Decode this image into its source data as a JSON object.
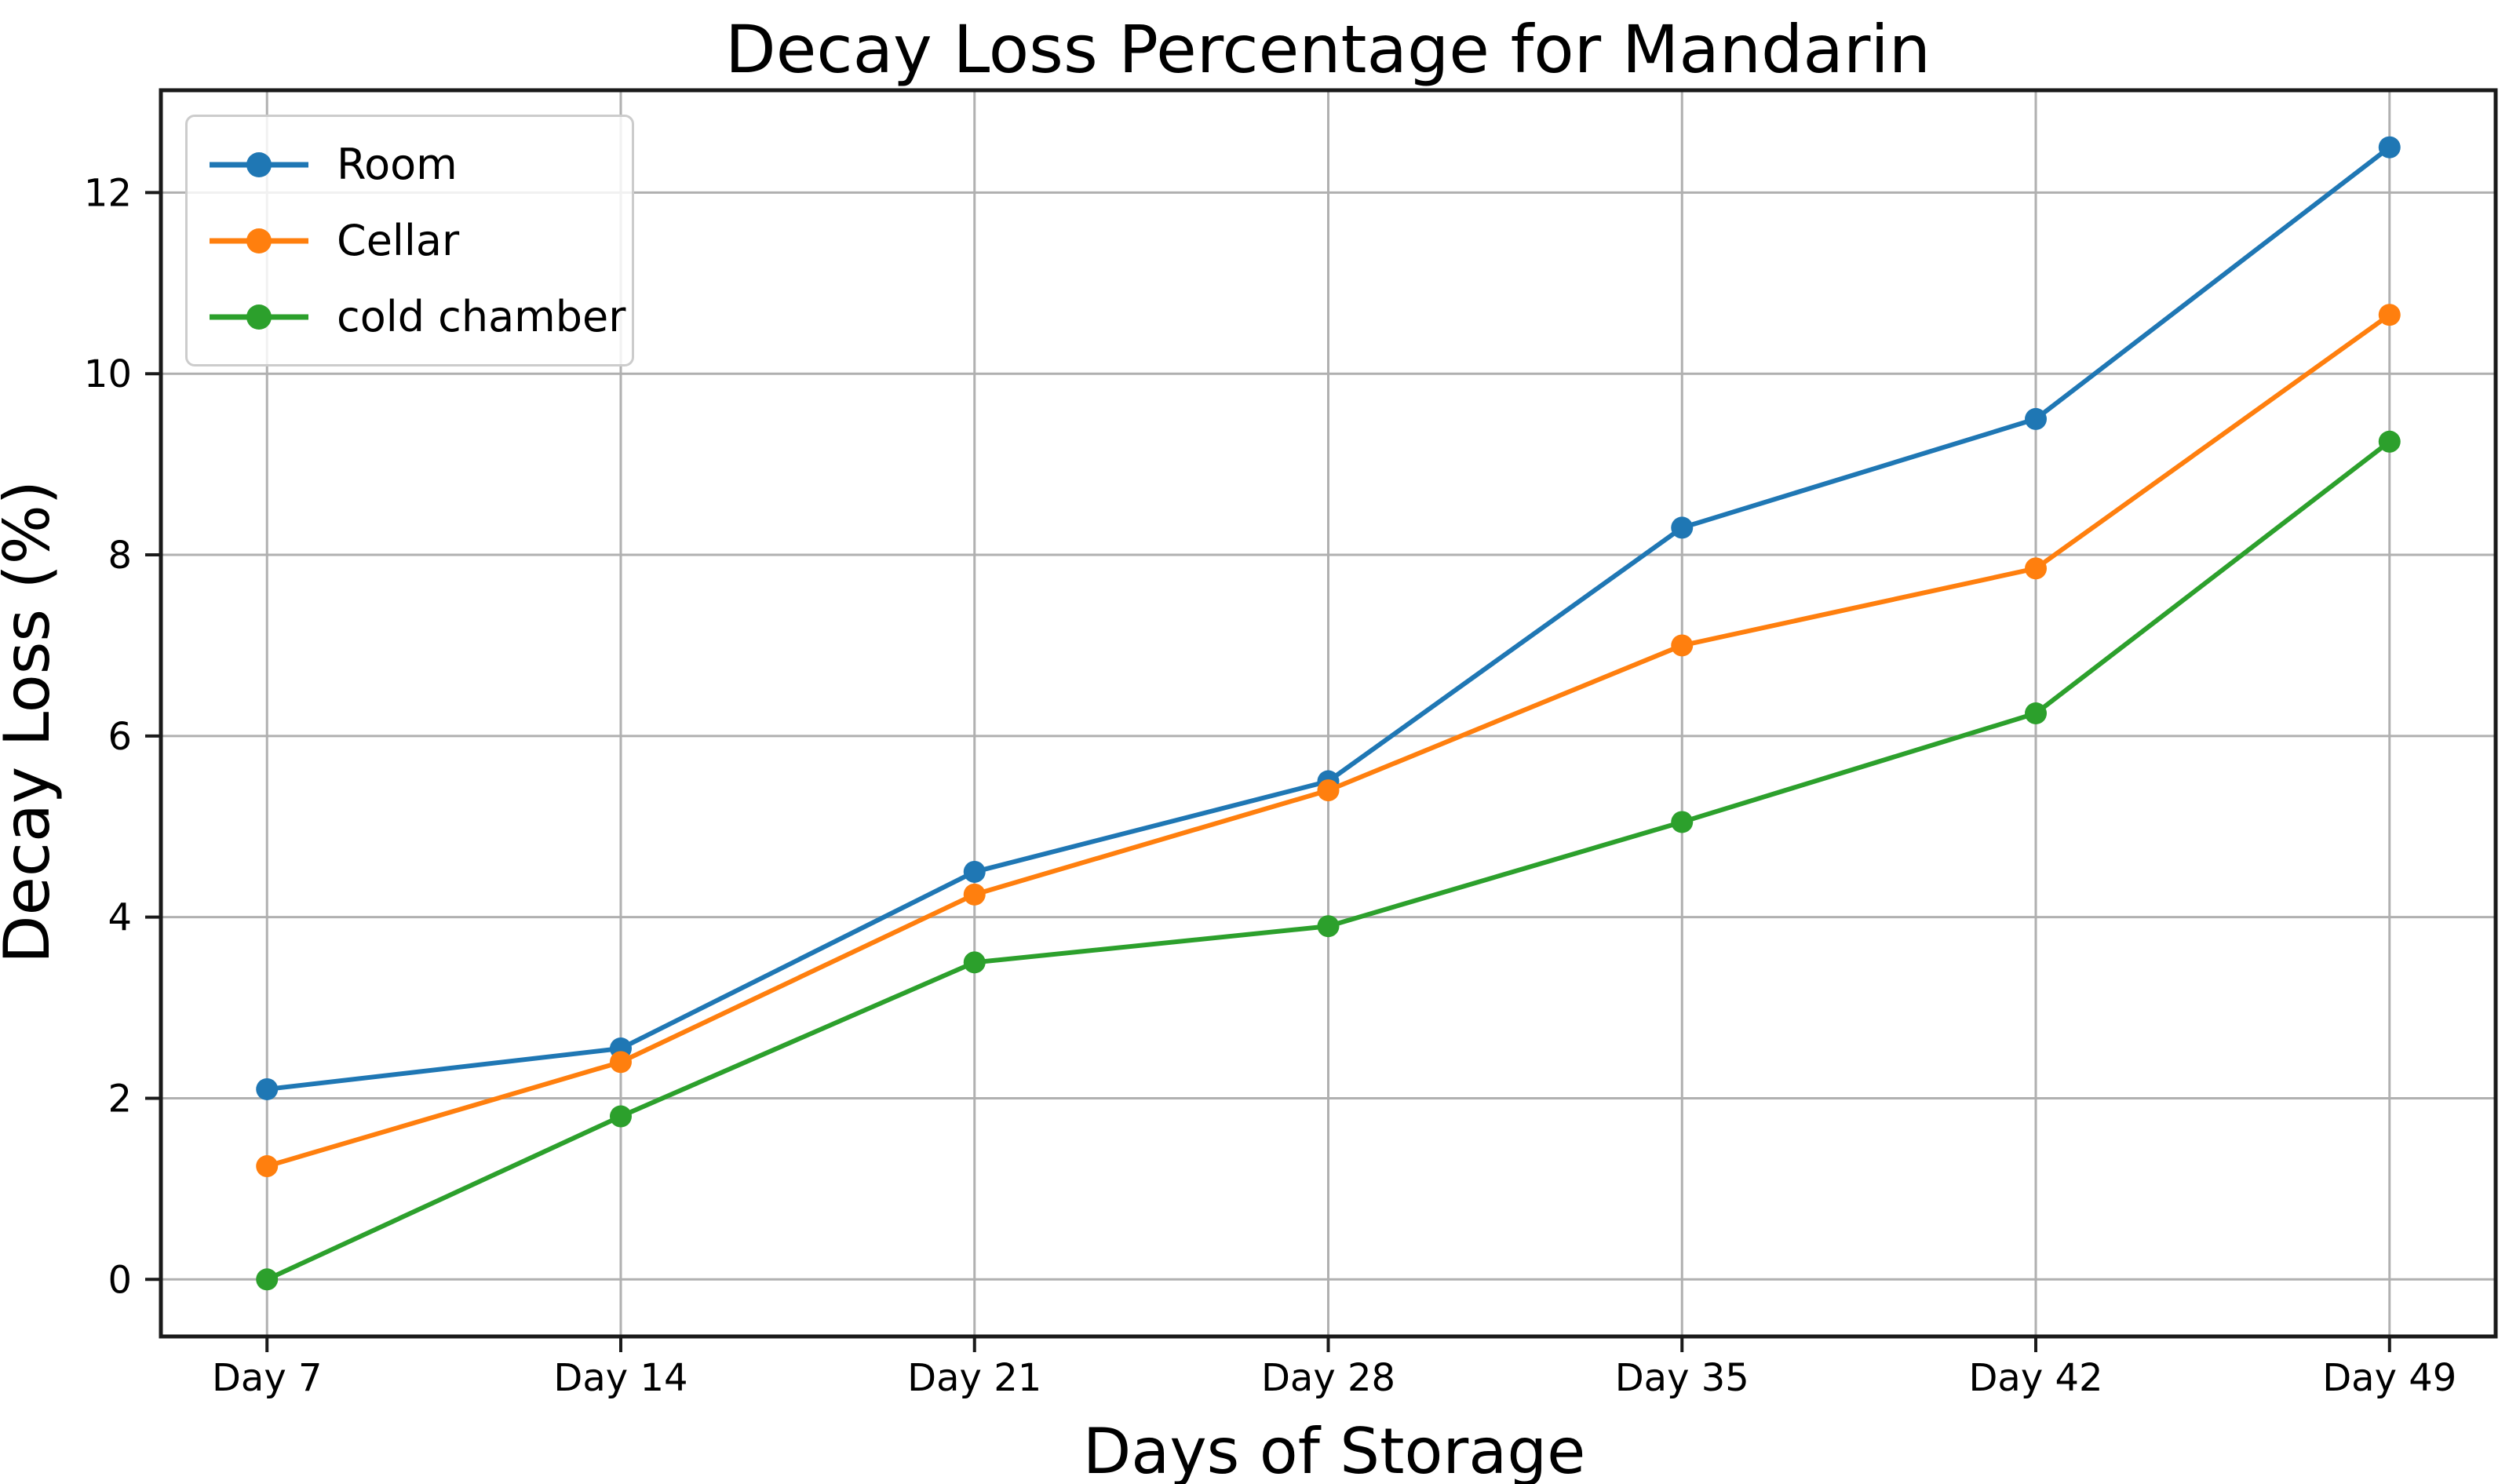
{
  "chart_data": {
    "type": "line",
    "title": "Decay Loss Percentage for Mandarin",
    "xlabel": "Days of Storage",
    "ylabel": "Decay Loss (%)",
    "categories": [
      "Day 7",
      "Day 14",
      "Day 21",
      "Day 28",
      "Day 35",
      "Day 42",
      "Day 49"
    ],
    "series": [
      {
        "name": "Room",
        "color": "#1f77b4",
        "values": [
          2.1,
          2.55,
          4.5,
          5.5,
          8.3,
          9.5,
          12.5
        ]
      },
      {
        "name": "Cellar",
        "color": "#ff7f0e",
        "values": [
          1.25,
          2.4,
          4.25,
          5.4,
          7.0,
          7.85,
          10.65
        ]
      },
      {
        "name": "cold chamber",
        "color": "#2ca02c",
        "values": [
          0.0,
          1.8,
          3.5,
          3.9,
          5.05,
          6.25,
          9.25
        ]
      }
    ],
    "yticks": [
      0,
      2,
      4,
      6,
      8,
      10,
      12
    ],
    "ylim": [
      -0.63,
      13.13
    ],
    "grid": true,
    "grid_color": "#b0b0b0",
    "spine_color": "#1a1a1a",
    "legend_position": "upper left",
    "marker": "circle"
  }
}
